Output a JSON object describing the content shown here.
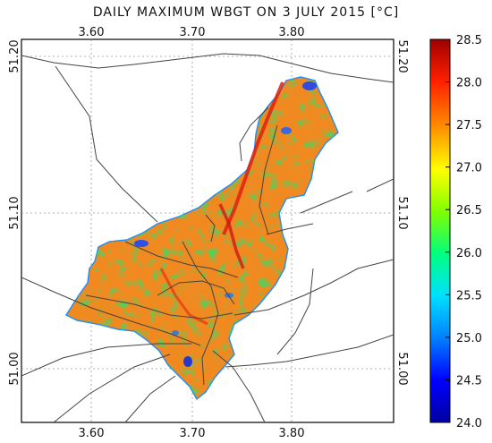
{
  "map": {
    "title": "DAILY MAXIMUM WBGT ON 3 JULY 2015 [°C]",
    "longitude_ticks": [
      "3.60",
      "3.70",
      "3.80"
    ],
    "latitude_ticks": [
      "51.00",
      "51.10",
      "51.20"
    ],
    "colorbar": {
      "ticks": [
        "24.0",
        "24.5",
        "25.0",
        "25.5",
        "26.0",
        "26.5",
        "27.0",
        "27.5",
        "28.0",
        "28.5"
      ],
      "range": [
        24.0,
        28.5
      ],
      "colors": [
        "#0000a0",
        "#0000ff",
        "#0080ff",
        "#00e0ff",
        "#00ff80",
        "#80ff00",
        "#ffff00",
        "#ff9000",
        "#ff2000",
        "#a00000"
      ]
    }
  }
}
